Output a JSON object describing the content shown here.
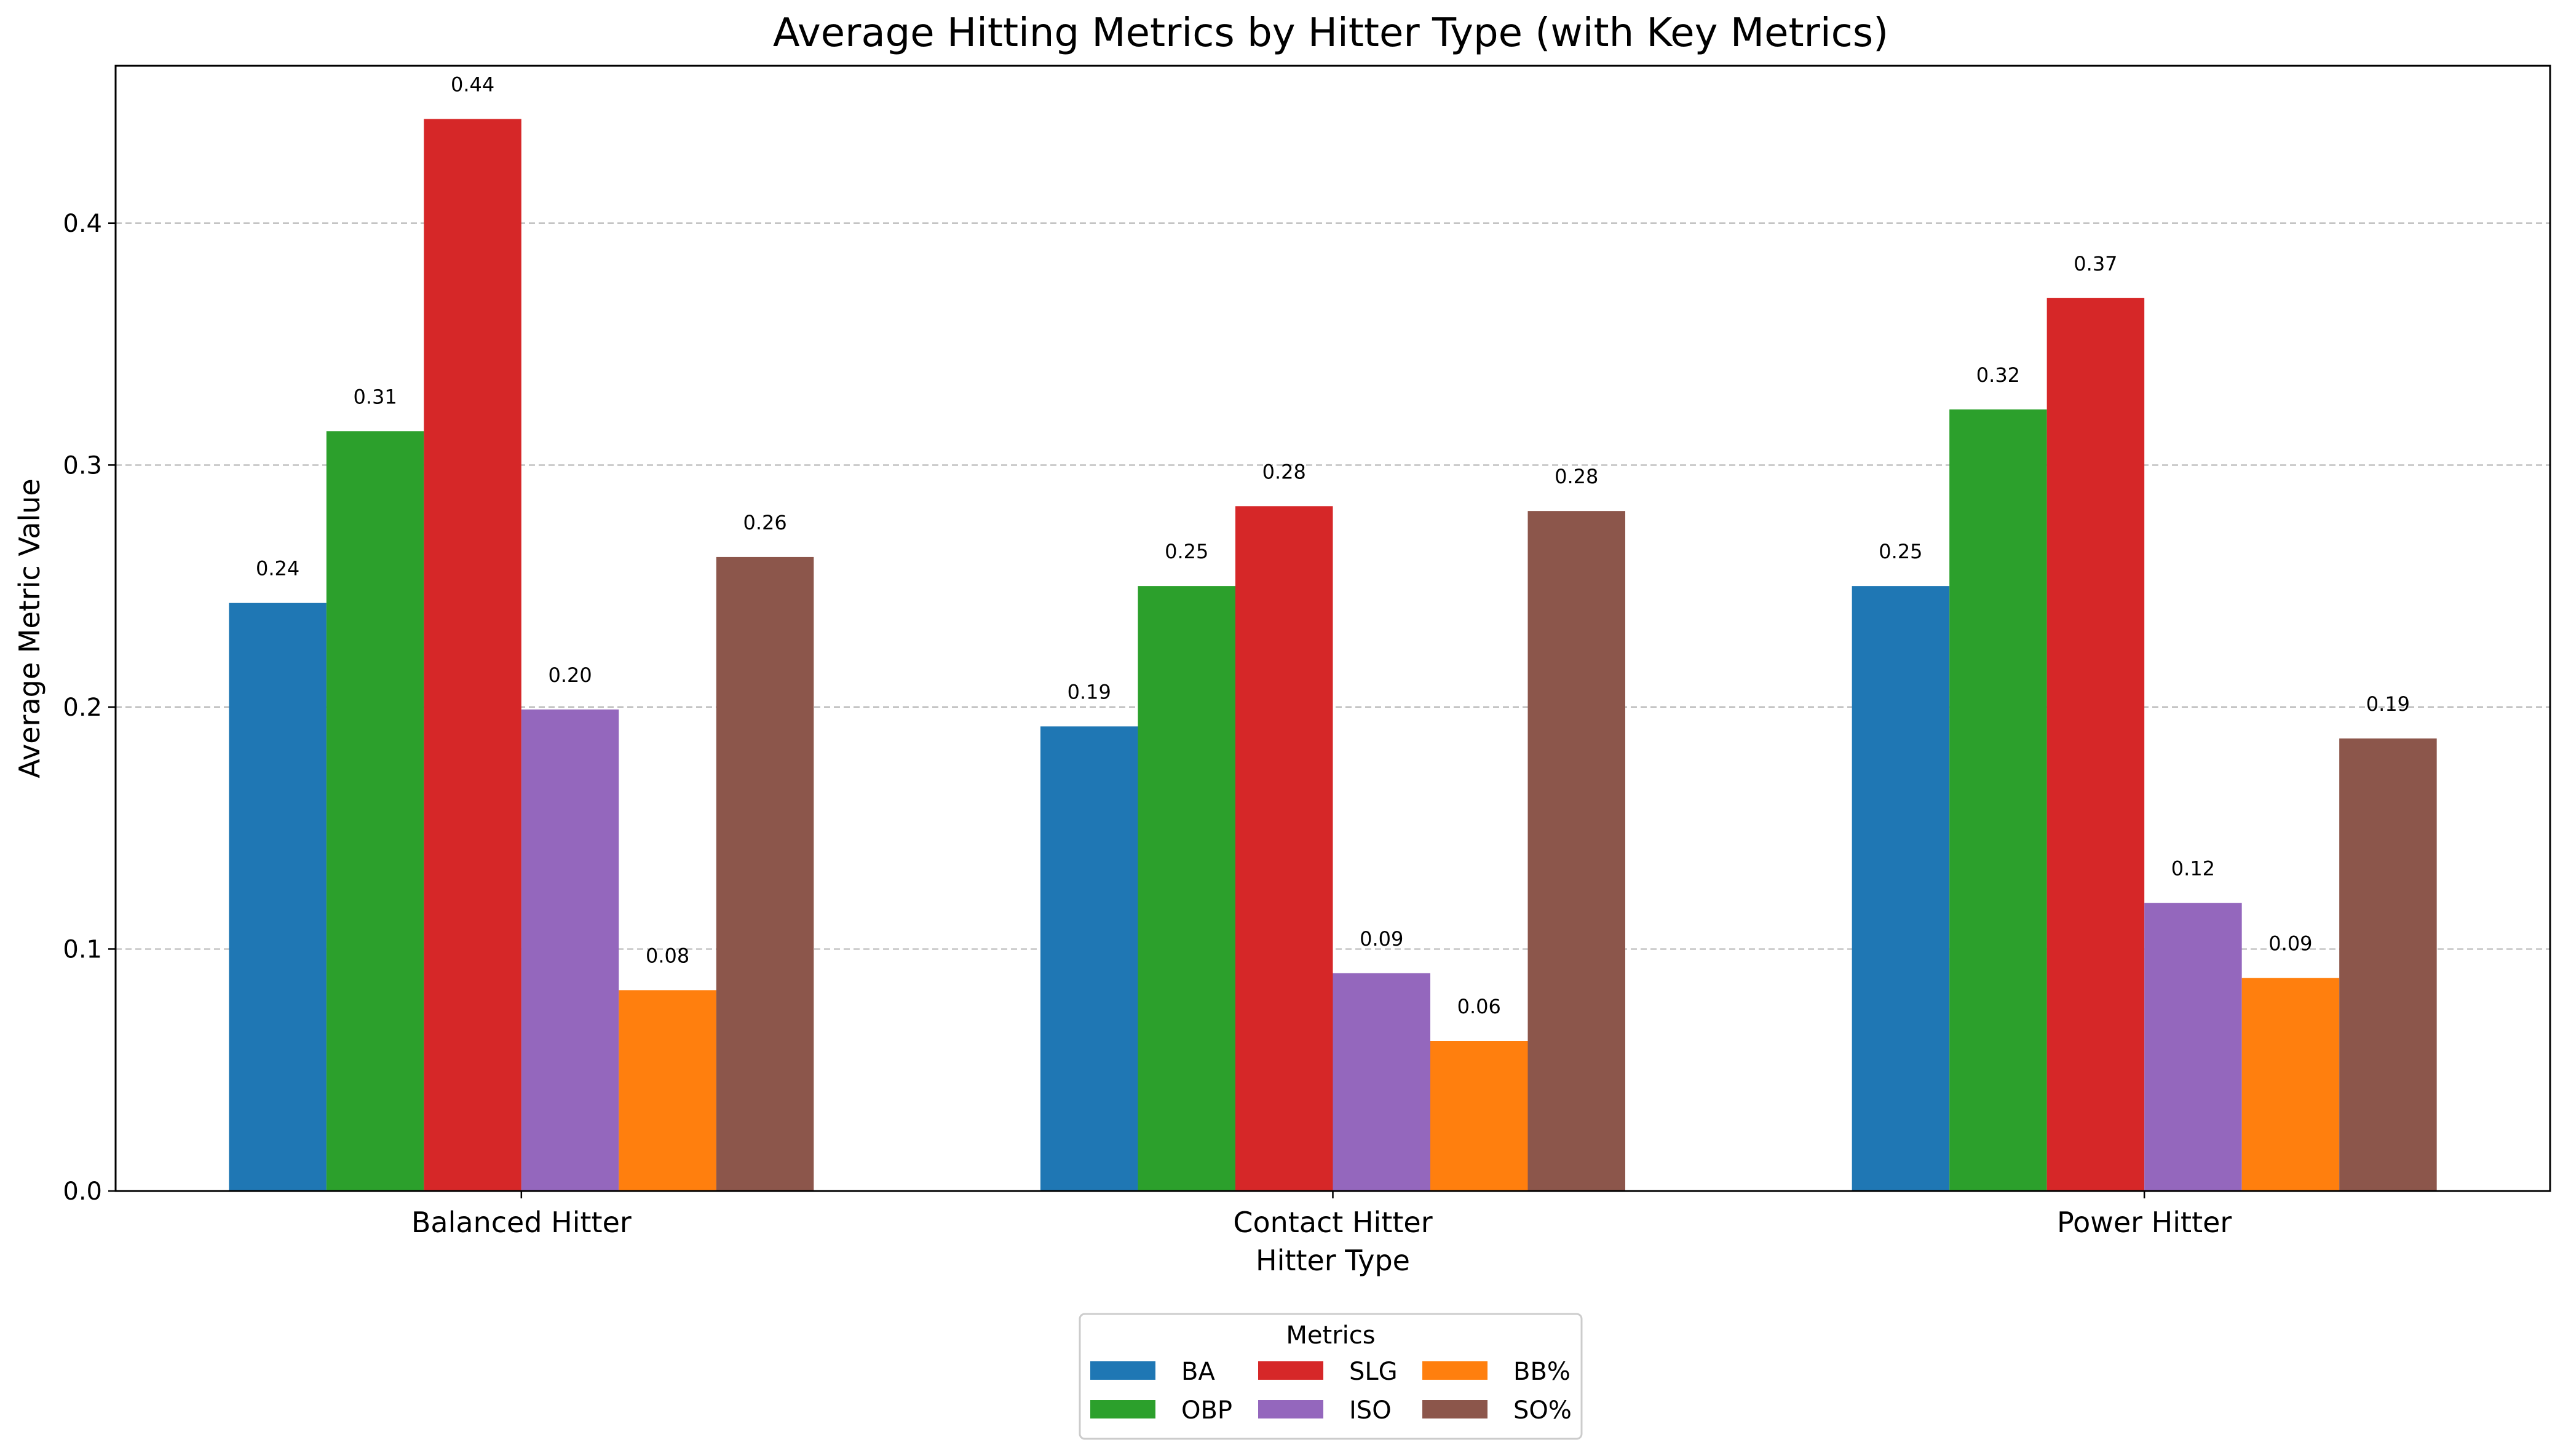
{
  "chart_data": {
    "type": "bar",
    "title": "Average Hitting Metrics by Hitter Type (with Key Metrics)",
    "xlabel": "Hitter Type",
    "ylabel": "Average Metric Value",
    "categories": [
      "Balanced Hitter",
      "Contact Hitter",
      "Power Hitter"
    ],
    "ylim": [
      0,
      0.465
    ],
    "yticks": [
      0.0,
      0.1,
      0.2,
      0.3,
      0.4
    ],
    "ytick_labels": [
      "0.0",
      "0.1",
      "0.2",
      "0.3",
      "0.4"
    ],
    "grid": "y-dashed",
    "legend": {
      "title": "Metrics",
      "placement": "bottom-center",
      "columns": 3
    },
    "series": [
      {
        "name": "BA",
        "color": "#1f77b4",
        "values": [
          0.243,
          0.192,
          0.25
        ],
        "labels": [
          "0.24",
          "0.19",
          "0.25"
        ]
      },
      {
        "name": "OBP",
        "color": "#2ca02c",
        "values": [
          0.314,
          0.25,
          0.323
        ],
        "labels": [
          "0.31",
          "0.25",
          "0.32"
        ]
      },
      {
        "name": "SLG",
        "color": "#d62728",
        "values": [
          0.443,
          0.283,
          0.369
        ],
        "labels": [
          "0.44",
          "0.28",
          "0.37"
        ]
      },
      {
        "name": "ISO",
        "color": "#9467bd",
        "values": [
          0.199,
          0.09,
          0.119
        ],
        "labels": [
          "0.20",
          "0.09",
          "0.12"
        ]
      },
      {
        "name": "BB%",
        "color": "#ff7f0e",
        "values": [
          0.083,
          0.062,
          0.088
        ],
        "labels": [
          "0.08",
          "0.06",
          "0.09"
        ]
      },
      {
        "name": "SO%",
        "color": "#8c564b",
        "values": [
          0.262,
          0.281,
          0.187
        ],
        "labels": [
          "0.26",
          "0.28",
          "0.19"
        ]
      }
    ]
  }
}
